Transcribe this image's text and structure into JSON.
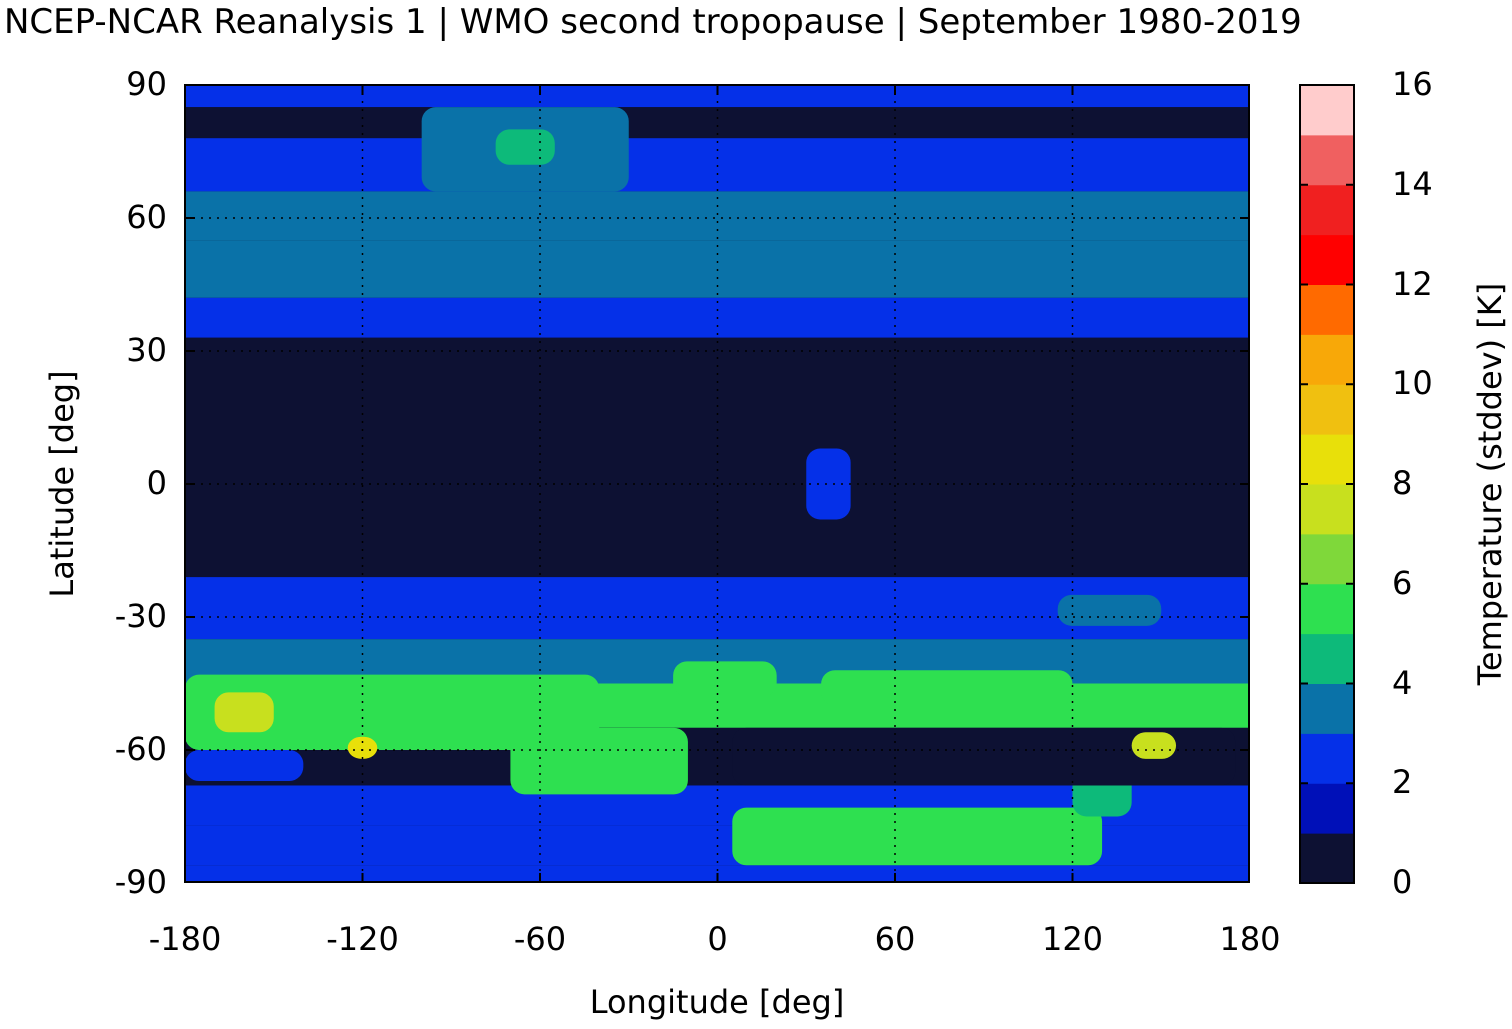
{
  "title": "NCEP-NCAR Reanalysis 1 | WMO second tropopause | September 1980-2019",
  "chart_data": {
    "type": "heatmap",
    "xlabel": "Longitude [deg]",
    "ylabel": "Latitude [deg]",
    "xlim": [
      -180,
      180
    ],
    "ylim": [
      -90,
      90
    ],
    "xticks": [
      "-180",
      "-120",
      "-60",
      "0",
      "60",
      "120",
      "180"
    ],
    "yticks": [
      "90",
      "60",
      "30",
      "0",
      "-30",
      "-60",
      "-90"
    ],
    "grid": "dotted",
    "colorbar": {
      "label": "Temperature (stddev) [K]",
      "range": [
        0,
        16
      ],
      "ticks": [
        "0",
        "2",
        "4",
        "6",
        "8",
        "10",
        "12",
        "14",
        "16"
      ],
      "colors": [
        "#0d1133",
        "#0010b8",
        "#0530e8",
        "#0a72a8",
        "#0dba7a",
        "#2ee050",
        "#7fd83a",
        "#c8e01e",
        "#e8e00a",
        "#f0c010",
        "#f8a808",
        "#ff6a00",
        "#ff0000",
        "#f02020",
        "#f06060",
        "#ffcccc"
      ]
    },
    "zonal_profile": [
      {
        "lat_from": 90,
        "lat_to": 85,
        "value": 2.5
      },
      {
        "lat_from": 85,
        "lat_to": 78,
        "value": 0.5
      },
      {
        "lat_from": 78,
        "lat_to": 66,
        "value": 2.5
      },
      {
        "lat_from": 66,
        "lat_to": 55,
        "value": 3.5
      },
      {
        "lat_from": 55,
        "lat_to": 42,
        "value": 3.5
      },
      {
        "lat_from": 42,
        "lat_to": 33,
        "value": 2.5
      },
      {
        "lat_from": 33,
        "lat_to": -21,
        "value": 0.5
      },
      {
        "lat_from": -21,
        "lat_to": -35,
        "value": 2.5
      },
      {
        "lat_from": -35,
        "lat_to": -45,
        "value": 3.5
      },
      {
        "lat_from": -45,
        "lat_to": -55,
        "value": 5.0
      },
      {
        "lat_from": -55,
        "lat_to": -68,
        "value": 0.5
      },
      {
        "lat_from": -68,
        "lat_to": -77,
        "value": 2.5
      },
      {
        "lat_from": -77,
        "lat_to": -86,
        "value": 2.5
      },
      {
        "lat_from": -86,
        "lat_to": -90,
        "value": 2.5
      }
    ],
    "regions": [
      {
        "lon": [
          -100,
          -30
        ],
        "lat": [
          85,
          66
        ],
        "value": 3.5
      },
      {
        "lon": [
          -75,
          -55
        ],
        "lat": [
          80,
          72
        ],
        "value": 4.5
      },
      {
        "lon": [
          -180,
          -40
        ],
        "lat": [
          -43,
          -60
        ],
        "value": 5.5
      },
      {
        "lon": [
          -170,
          -150
        ],
        "lat": [
          -47,
          -56
        ],
        "value": 7.5
      },
      {
        "lon": [
          -70,
          -10
        ],
        "lat": [
          -55,
          -70
        ],
        "value": 5.5
      },
      {
        "lon": [
          5,
          130
        ],
        "lat": [
          -73,
          -86
        ],
        "value": 5.5
      },
      {
        "lon": [
          120,
          140
        ],
        "lat": [
          -65,
          -75
        ],
        "value": 4.5
      },
      {
        "lon": [
          5,
          175
        ],
        "lat": [
          -55,
          -68
        ],
        "value": 0.5
      },
      {
        "lon": [
          -15,
          20
        ],
        "lat": [
          -40,
          -48
        ],
        "value": 5.0
      },
      {
        "lon": [
          35,
          120
        ],
        "lat": [
          -42,
          -50
        ],
        "value": 5.0
      },
      {
        "lon": [
          115,
          150
        ],
        "lat": [
          -25,
          -32
        ],
        "value": 3.5
      },
      {
        "lon": [
          30,
          45
        ],
        "lat": [
          8,
          -8
        ],
        "value": 2.5
      },
      {
        "lon": [
          -180,
          -140
        ],
        "lat": [
          -60,
          -67
        ],
        "value": 2.5
      },
      {
        "lon": [
          140,
          155
        ],
        "lat": [
          -56,
          -62
        ],
        "value": 7.5
      },
      {
        "lon": [
          -125,
          -115
        ],
        "lat": [
          -57,
          -62
        ],
        "value": 8.0
      }
    ]
  }
}
